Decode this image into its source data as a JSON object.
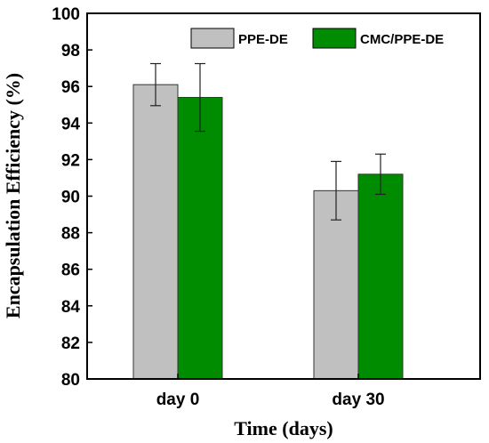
{
  "chart_data": {
    "type": "bar",
    "xlabel": "Time (days)",
    "ylabel": "Encapsulation Efficiency (%)",
    "ylim": [
      80,
      100
    ],
    "yticks": [
      80,
      82,
      84,
      86,
      88,
      90,
      92,
      94,
      96,
      98,
      100
    ],
    "categories": [
      "day 0",
      "day 30"
    ],
    "series": [
      {
        "name": "PPE-DE",
        "color": "#c0c0c0",
        "values": [
          96.1,
          90.3
        ],
        "errors": [
          1.15,
          1.6
        ]
      },
      {
        "name": "CMC/PPE-DE",
        "color": "#008c00",
        "values": [
          95.4,
          91.2
        ],
        "errors": [
          1.85,
          1.1
        ]
      }
    ],
    "legend_position": "top-right",
    "grid": false
  }
}
